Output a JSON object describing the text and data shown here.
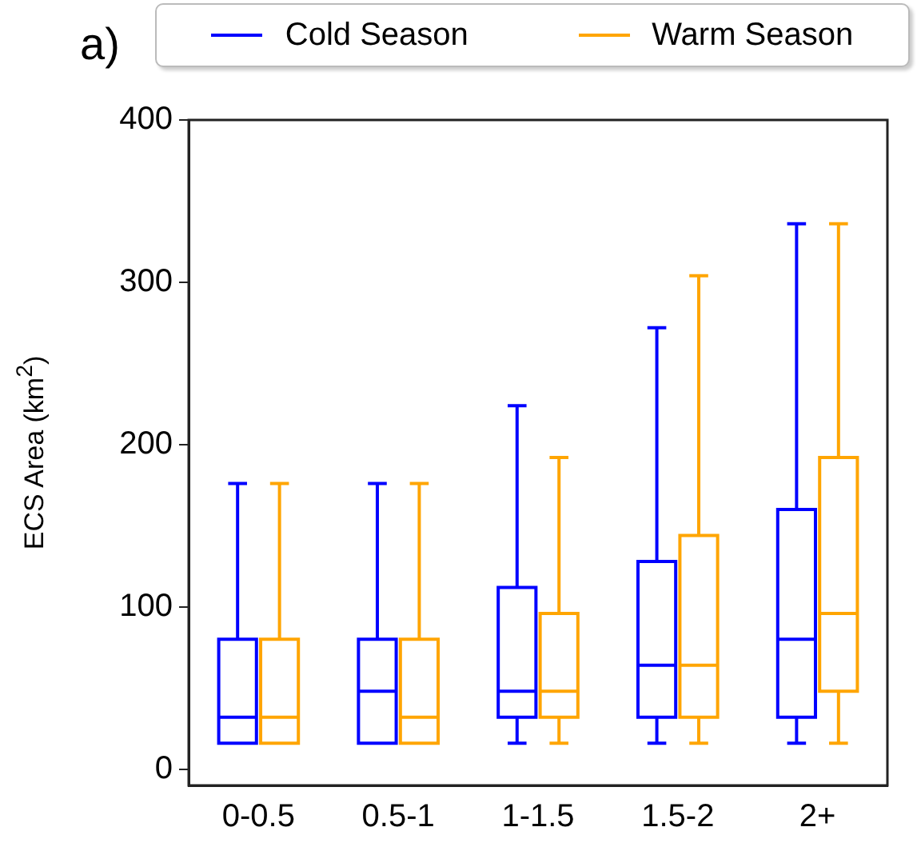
{
  "chart_data": {
    "type": "box",
    "ylabel": "ECS Area (km$^{2}$)",
    "annotations": [
      "a)"
    ],
    "categories": [
      "0-0.5",
      "0.5-1",
      "1-1.5",
      "1.5-2",
      "2+"
    ],
    "series": [
      {
        "name": "Cold Season",
        "color": "#0000ff",
        "boxes": [
          {
            "low": 16,
            "q1": 16,
            "median": 32,
            "q3": 80,
            "high": 176
          },
          {
            "low": 16,
            "q1": 16,
            "median": 48,
            "q3": 80,
            "high": 176
          },
          {
            "low": 16,
            "q1": 32,
            "median": 48,
            "q3": 112,
            "high": 224
          },
          {
            "low": 16,
            "q1": 32,
            "median": 64,
            "q3": 128,
            "high": 272
          },
          {
            "low": 16,
            "q1": 32,
            "median": 80,
            "q3": 160,
            "high": 336
          }
        ]
      },
      {
        "name": "Warm Season",
        "color": "#ffa500",
        "boxes": [
          {
            "low": 16,
            "q1": 16,
            "median": 32,
            "q3": 80,
            "high": 176
          },
          {
            "low": 16,
            "q1": 16,
            "median": 32,
            "q3": 80,
            "high": 176
          },
          {
            "low": 16,
            "q1": 32,
            "median": 48,
            "q3": 96,
            "high": 192
          },
          {
            "low": 16,
            "q1": 32,
            "median": 64,
            "q3": 144,
            "high": 304
          },
          {
            "low": 16,
            "q1": 48,
            "median": 96,
            "q3": 192,
            "high": 336
          }
        ]
      }
    ],
    "ylim": [
      -10,
      400
    ],
    "yticks": [
      0,
      100,
      200,
      300,
      400
    ],
    "grid": false,
    "legend": "top"
  }
}
